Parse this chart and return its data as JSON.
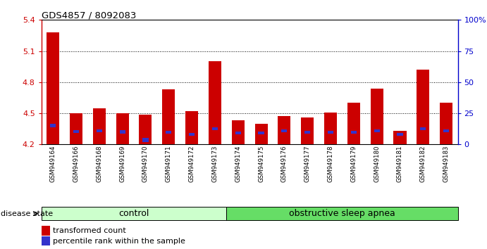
{
  "title": "GDS4857 / 8092083",
  "samples": [
    "GSM949164",
    "GSM949166",
    "GSM949168",
    "GSM949169",
    "GSM949170",
    "GSM949171",
    "GSM949172",
    "GSM949173",
    "GSM949174",
    "GSM949175",
    "GSM949176",
    "GSM949177",
    "GSM949178",
    "GSM949179",
    "GSM949180",
    "GSM949181",
    "GSM949182",
    "GSM949183"
  ],
  "red_values": [
    5.28,
    4.5,
    4.55,
    4.5,
    4.49,
    4.73,
    4.52,
    5.0,
    4.43,
    4.4,
    4.47,
    4.46,
    4.51,
    4.6,
    4.74,
    4.33,
    4.92,
    4.6
  ],
  "blue_heights": [
    0.035,
    0.03,
    0.03,
    0.03,
    0.035,
    0.028,
    0.028,
    0.032,
    0.028,
    0.028,
    0.03,
    0.028,
    0.028,
    0.028,
    0.03,
    0.028,
    0.032,
    0.028
  ],
  "blue_bottoms": [
    4.365,
    4.31,
    4.315,
    4.305,
    4.225,
    4.305,
    4.285,
    4.335,
    4.295,
    4.295,
    4.315,
    4.305,
    4.305,
    4.305,
    4.315,
    4.285,
    4.335,
    4.315
  ],
  "ymin": 4.2,
  "ymax": 5.4,
  "yticks": [
    4.2,
    4.5,
    4.8,
    5.1,
    5.4
  ],
  "right_yticks": [
    0,
    25,
    50,
    75,
    100
  ],
  "right_ytick_labels": [
    "0",
    "25",
    "50",
    "75",
    "100%"
  ],
  "dotted_lines": [
    5.1,
    4.8,
    4.5
  ],
  "bar_color": "#cc0000",
  "blue_color": "#3333cc",
  "control_samples": 8,
  "control_label": "control",
  "disease_label": "obstructive sleep apnea",
  "control_bg": "#ccffcc",
  "disease_bg": "#66dd66",
  "legend_red": "transformed count",
  "legend_blue": "percentile rank within the sample",
  "left_color": "#cc0000",
  "right_color": "#0000cc",
  "bar_width": 0.55,
  "blue_bar_width": 0.25
}
